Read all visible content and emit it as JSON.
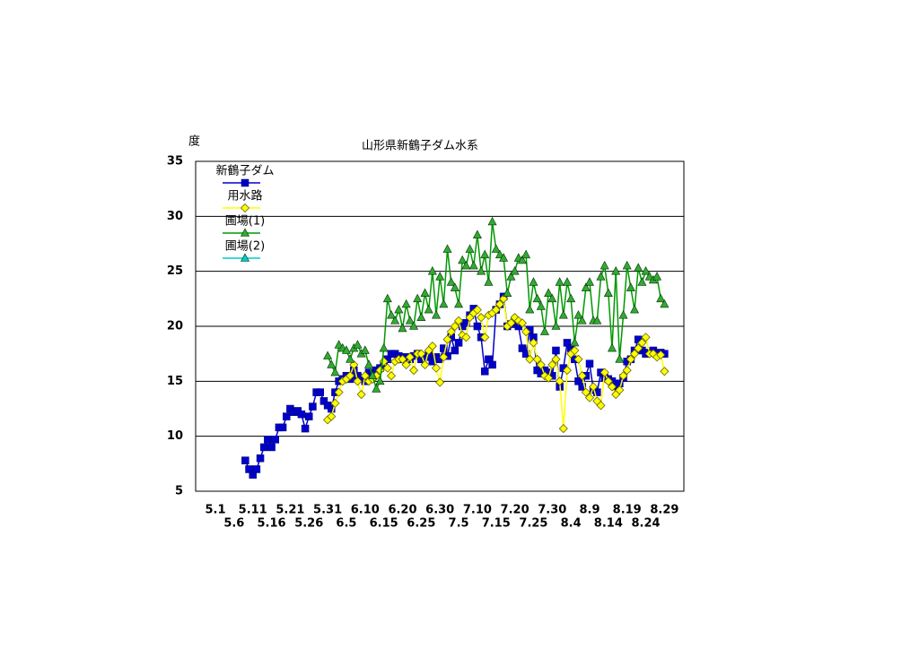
{
  "chart_data": {
    "type": "line",
    "title": "山形県新鶴子ダム水系",
    "ylabel": "度",
    "ylim": [
      5,
      35
    ],
    "yticks": [
      5,
      10,
      15,
      20,
      25,
      30,
      35
    ],
    "grid": true,
    "legend": "upper left",
    "categories": [
      "5.1",
      null,
      null,
      null,
      null,
      "5.6",
      null,
      null,
      null,
      null,
      "5.11",
      null,
      null,
      null,
      null,
      "5.16",
      null,
      null,
      null,
      null,
      "5.21",
      null,
      null,
      null,
      null,
      "5.26",
      null,
      null,
      null,
      null,
      "5.31",
      null,
      null,
      null,
      null,
      "6.5",
      null,
      null,
      null,
      null,
      "6.10",
      null,
      null,
      null,
      null,
      "6.15",
      null,
      null,
      null,
      null,
      "6.20",
      null,
      null,
      null,
      null,
      "6.25",
      null,
      null,
      null,
      null,
      "6.30",
      null,
      null,
      null,
      null,
      "7.5",
      null,
      null,
      null,
      null,
      "7.10",
      null,
      null,
      null,
      null,
      "7.15",
      null,
      null,
      null,
      null,
      "7.20",
      null,
      null,
      null,
      null,
      "7.25",
      null,
      null,
      null,
      null,
      "7.30",
      null,
      null,
      null,
      null,
      "8.4",
      null,
      null,
      null,
      null,
      "8.9",
      null,
      null,
      null,
      null,
      "8.14",
      null,
      null,
      null,
      null,
      "8.19",
      null,
      null,
      null,
      null,
      "8.24",
      null,
      null,
      null,
      null,
      "8.29",
      null,
      null
    ],
    "series": [
      {
        "name": "新鶴子ダム",
        "color": "#0000cc",
        "marker": "square",
        "values": [
          null,
          null,
          null,
          null,
          null,
          null,
          null,
          null,
          7.8,
          7.0,
          6.5,
          7.0,
          8.0,
          9.0,
          9.7,
          9.0,
          9.7,
          10.8,
          10.8,
          11.8,
          12.5,
          12.2,
          12.3,
          12.0,
          10.7,
          11.8,
          12.7,
          14.0,
          14.0,
          13.2,
          12.8,
          12.5,
          14.0,
          15.0,
          15.2,
          15.5,
          15.2,
          16.0,
          15.5,
          15.3,
          15.0,
          15.8,
          15.5,
          16.0,
          16.2,
          16.5,
          17.0,
          17.5,
          17.5,
          17.3,
          17.0,
          17.2,
          17.0,
          17.3,
          17.5,
          17.0,
          17.2,
          17.5,
          16.8,
          17.2,
          17.0,
          18.0,
          17.3,
          19.0,
          17.8,
          18.5,
          20.0,
          20.3,
          21.0,
          21.6,
          20.0,
          19.0,
          15.9,
          17.0,
          16.5,
          21.5,
          22.0,
          22.7,
          20.0,
          20.2,
          20.5,
          20.0,
          18.0,
          17.5,
          19.7,
          19.0,
          16.0,
          15.7,
          16.0,
          15.8,
          15.5,
          17.8,
          14.5,
          16.2,
          18.5,
          18.0,
          17.0,
          15.0,
          14.5,
          15.5,
          16.6,
          14.2,
          14.0,
          15.8,
          15.3,
          15.2,
          15.0,
          14.5,
          14.8,
          15.3,
          16.8,
          17.0,
          17.8,
          18.8,
          17.8,
          17.5,
          17.6,
          17.8,
          17.5,
          17.6,
          17.5,
          null,
          null
        ]
      },
      {
        "name": "用水路",
        "color": "#ffff00",
        "marker": "diamond",
        "values": [
          null,
          null,
          null,
          null,
          null,
          null,
          null,
          null,
          null,
          null,
          null,
          null,
          null,
          null,
          null,
          null,
          null,
          null,
          null,
          null,
          null,
          null,
          null,
          null,
          null,
          null,
          null,
          null,
          null,
          null,
          11.5,
          11.8,
          13.0,
          14.0,
          15.0,
          15.2,
          15.5,
          16.5,
          15.0,
          13.8,
          15.5,
          15.0,
          15.2,
          15.5,
          16.0,
          16.8,
          16.2,
          15.5,
          16.8,
          17.0,
          17.0,
          16.5,
          17.2,
          16.0,
          17.5,
          17.5,
          16.5,
          17.8,
          18.2,
          16.2,
          14.9,
          17.2,
          18.8,
          19.5,
          20.0,
          20.5,
          19.2,
          19.0,
          20.8,
          21.2,
          21.5,
          20.8,
          19.0,
          21.0,
          21.2,
          21.5,
          22.0,
          22.5,
          20.0,
          20.3,
          20.8,
          20.5,
          20.3,
          19.5,
          17.0,
          18.5,
          17.0,
          16.5,
          15.5,
          15.3,
          16.5,
          17.0,
          15.0,
          10.7,
          16.0,
          17.5,
          17.8,
          17.0,
          15.5,
          14.0,
          13.5,
          14.5,
          13.2,
          12.8,
          15.8,
          15.0,
          14.5,
          13.8,
          14.2,
          15.5,
          16.0,
          17.0,
          17.5,
          18.0,
          18.5,
          19.0,
          17.5,
          17.5,
          17.2,
          17.4,
          15.9,
          null,
          null
        ]
      },
      {
        "name": "圃場(1)",
        "color": "#009900",
        "marker": "triangle",
        "values": [
          null,
          null,
          null,
          null,
          null,
          null,
          null,
          null,
          null,
          null,
          null,
          null,
          null,
          null,
          null,
          null,
          null,
          null,
          null,
          null,
          null,
          null,
          null,
          null,
          null,
          null,
          null,
          null,
          null,
          null,
          17.3,
          16.5,
          15.8,
          18.3,
          18.0,
          17.8,
          17.0,
          18.0,
          18.3,
          17.5,
          17.8,
          16.5,
          15.5,
          14.3,
          15.0,
          18.0,
          22.5,
          21.0,
          20.5,
          21.5,
          19.8,
          22.0,
          20.5,
          20.0,
          22.5,
          20.8,
          23.0,
          21.5,
          25.0,
          21.0,
          24.5,
          22.0,
          27.0,
          24.0,
          23.5,
          22.0,
          26.0,
          25.5,
          27.0,
          25.5,
          28.3,
          25.0,
          26.5,
          24.0,
          29.5,
          27.0,
          26.5,
          26.2,
          23.0,
          24.5,
          25.0,
          26.2,
          26.0,
          26.5,
          21.5,
          24.0,
          22.5,
          21.8,
          19.5,
          23.0,
          22.5,
          20.0,
          24.0,
          21.0,
          24.0,
          22.5,
          18.5,
          21.0,
          20.5,
          23.5,
          24.0,
          20.5,
          20.5,
          24.5,
          25.5,
          23.0,
          18.0,
          25.0,
          17.0,
          21.0,
          25.5,
          23.5,
          21.5,
          25.3,
          24.0,
          25.0,
          24.5,
          24.2,
          24.5,
          22.5,
          22.0,
          null,
          null
        ]
      },
      {
        "name": "圃場(2)",
        "color": "#00cccc",
        "marker": "triangle",
        "values": [
          null,
          null,
          null,
          null,
          null,
          null,
          null,
          null,
          null,
          null,
          null,
          null,
          null,
          null,
          null,
          null,
          null,
          null,
          null,
          null,
          null,
          null,
          null,
          null,
          null,
          null,
          null,
          null,
          null,
          null,
          null,
          null,
          null,
          null,
          null,
          null,
          null,
          null,
          null,
          null,
          null,
          null,
          null,
          null,
          null,
          null,
          null,
          null,
          null,
          null,
          null,
          null,
          null,
          null,
          null,
          null,
          null,
          null,
          null,
          null,
          null,
          null,
          null,
          null,
          null,
          null,
          null,
          null,
          null,
          null,
          null,
          null,
          null,
          null,
          null,
          null,
          null,
          null,
          null,
          null,
          null,
          null,
          null,
          null,
          null,
          null,
          null,
          null,
          null,
          null,
          null,
          null,
          null,
          null,
          null,
          null,
          null,
          null,
          null,
          null,
          null,
          null,
          null,
          null,
          null,
          null,
          null,
          null,
          null,
          null,
          null,
          null,
          null,
          null,
          null,
          null,
          null,
          null,
          null,
          null,
          null,
          null,
          null
        ]
      }
    ]
  }
}
